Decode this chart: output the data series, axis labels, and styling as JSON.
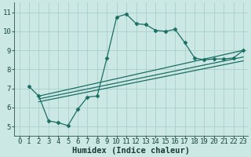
{
  "bg_color": "#cce8e4",
  "line_color": "#1a6e64",
  "grid_color": "#aacfcb",
  "xlabel": "Humidex (Indice chaleur)",
  "xlabel_fontsize": 7.5,
  "tick_fontsize": 6.5,
  "xlim": [
    -0.5,
    23.5
  ],
  "ylim": [
    4.5,
    11.5
  ],
  "yticks": [
    5,
    6,
    7,
    8,
    9,
    10,
    11
  ],
  "xticks": [
    0,
    1,
    2,
    3,
    4,
    5,
    6,
    7,
    8,
    9,
    10,
    11,
    12,
    13,
    14,
    15,
    16,
    17,
    18,
    19,
    20,
    21,
    22,
    23
  ],
  "line1_x": [
    1,
    2,
    3,
    4,
    5,
    6,
    7,
    8,
    9,
    10,
    11,
    12,
    13,
    14,
    15,
    16,
    17,
    18,
    19,
    20,
    21,
    22,
    23
  ],
  "line1_y": [
    7.1,
    6.6,
    5.3,
    5.2,
    5.05,
    5.9,
    6.55,
    6.6,
    8.6,
    10.75,
    10.9,
    10.4,
    10.35,
    10.05,
    10.0,
    10.1,
    9.4,
    8.6,
    8.5,
    8.55,
    8.55,
    8.6,
    9.0
  ],
  "line2_x": [
    2,
    23
  ],
  "line2_y": [
    6.6,
    9.0
  ],
  "line3_x": [
    2,
    23
  ],
  "line3_y": [
    6.45,
    8.65
  ],
  "line4_x": [
    2,
    23
  ],
  "line4_y": [
    6.3,
    8.45
  ]
}
